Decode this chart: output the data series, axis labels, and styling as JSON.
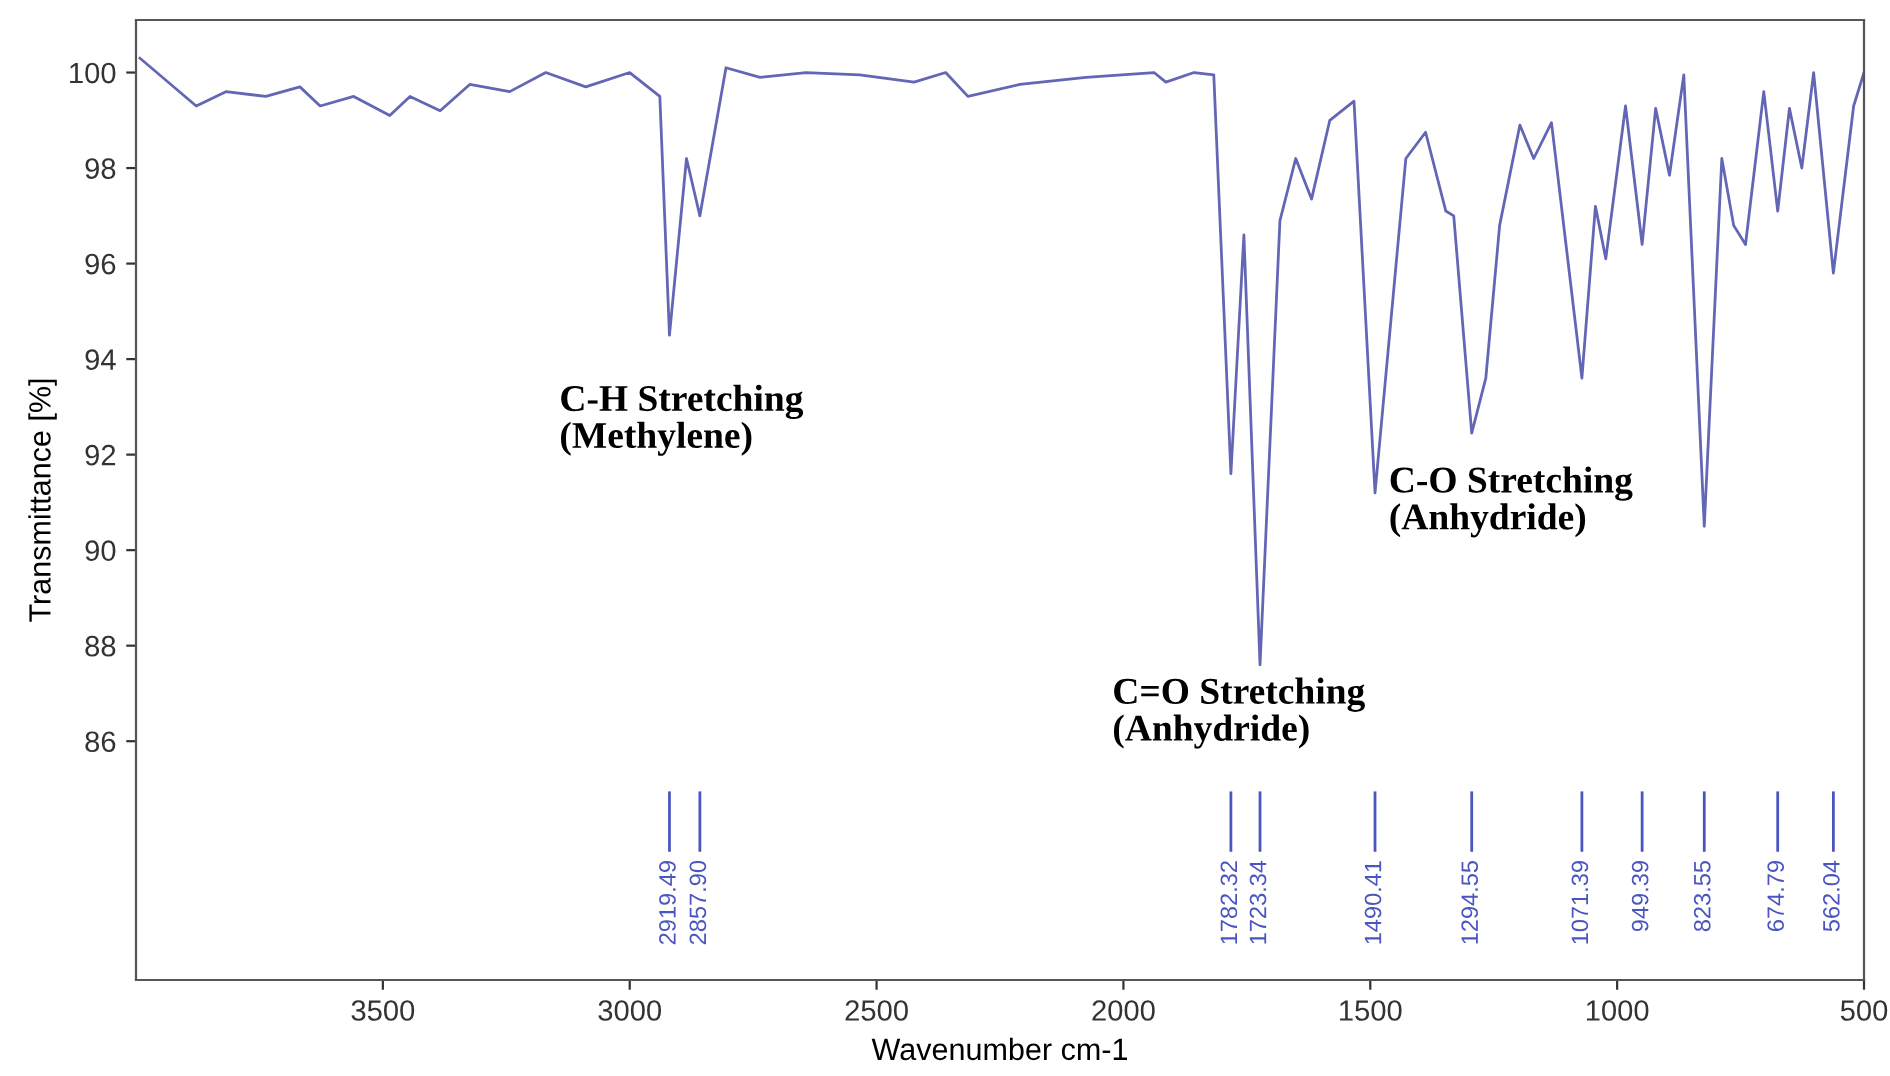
{
  "chart_data": {
    "type": "line",
    "xlabel": "Wavenumber cm-1",
    "ylabel": "Transmittance [%]",
    "xlim": [
      4000,
      500
    ],
    "ylim": [
      81,
      101.1
    ],
    "xticks": [
      3500,
      3000,
      2500,
      2000,
      1500,
      1000,
      500
    ],
    "yticks": [
      86,
      88,
      90,
      92,
      94,
      96,
      98,
      100
    ],
    "grid": false,
    "line_style": "solid",
    "marker": "none",
    "series": [
      {
        "color": "#6266b4",
        "x": [
          3992,
          3878,
          3818,
          3737,
          3668,
          3627,
          3559,
          3486,
          3445,
          3384,
          3324,
          3243,
          3170,
          3089,
          3000,
          2939,
          2919.49,
          2885,
          2857.9,
          2805,
          2736,
          2643,
          2534,
          2424,
          2360,
          2315,
          2210,
          2076,
          1938,
          1914,
          1857,
          1817,
          1782.32,
          1756,
          1723.34,
          1683,
          1651,
          1619,
          1582,
          1533,
          1490.41,
          1428,
          1388,
          1347,
          1331,
          1294.55,
          1266,
          1238,
          1197,
          1169,
          1133,
          1071.39,
          1044,
          1023,
          983,
          949.39,
          922,
          894,
          865,
          823.55,
          788,
          764,
          740,
          703,
          674.79,
          651,
          626,
          602,
          562.04,
          521,
          500
        ],
        "values": [
          100.3,
          99.3,
          99.6,
          99.5,
          99.7,
          99.3,
          99.5,
          99.1,
          99.5,
          99.2,
          99.75,
          99.6,
          100.0,
          99.7,
          100.0,
          99.5,
          94.5,
          98.2,
          97.0,
          100.1,
          99.9,
          100.0,
          99.95,
          99.8,
          100.0,
          99.5,
          99.75,
          99.9,
          100.0,
          99.8,
          100.0,
          99.95,
          91.6,
          96.6,
          87.6,
          96.9,
          98.2,
          97.35,
          99.0,
          99.4,
          91.2,
          98.2,
          98.75,
          97.1,
          97.0,
          92.45,
          93.6,
          96.8,
          98.9,
          98.2,
          98.95,
          93.6,
          97.2,
          96.1,
          99.3,
          96.4,
          99.25,
          97.85,
          99.95,
          90.5,
          98.2,
          96.8,
          96.4,
          99.6,
          97.1,
          99.25,
          98.0,
          100.0,
          95.8,
          99.3,
          100.0
        ]
      }
    ],
    "annotations": [
      "C-H Stretching\n(Methylene)",
      "C=O Stretching\n(Anhydride)",
      "C-O Stretching\n(Anhydride)"
    ],
    "ref_lines": [
      {
        "axis": "x",
        "value": 2919.49,
        "label": "2919.49",
        "color": "#4a55c0"
      },
      {
        "axis": "x",
        "value": 2857.9,
        "label": "2857.90",
        "color": "#4a55c0"
      },
      {
        "axis": "x",
        "value": 1782.32,
        "label": "1782.32",
        "color": "#4a55c0"
      },
      {
        "axis": "x",
        "value": 1723.34,
        "label": "1723.34",
        "color": "#4a55c0"
      },
      {
        "axis": "x",
        "value": 1490.41,
        "label": "1490.41",
        "color": "#4a55c0"
      },
      {
        "axis": "x",
        "value": 1294.55,
        "label": "1294.55",
        "color": "#4a55c0"
      },
      {
        "axis": "x",
        "value": 1071.39,
        "label": "1071.39",
        "color": "#4a55c0"
      },
      {
        "axis": "x",
        "value": 949.39,
        "label": "949.39",
        "color": "#4a55c0"
      },
      {
        "axis": "x",
        "value": 823.55,
        "label": "823.55",
        "color": "#4a55c0"
      },
      {
        "axis": "x",
        "value": 674.79,
        "label": "674.79",
        "color": "#4a55c0"
      },
      {
        "axis": "x",
        "value": 562.04,
        "label": "562.04",
        "color": "#4a55c0"
      }
    ]
  }
}
